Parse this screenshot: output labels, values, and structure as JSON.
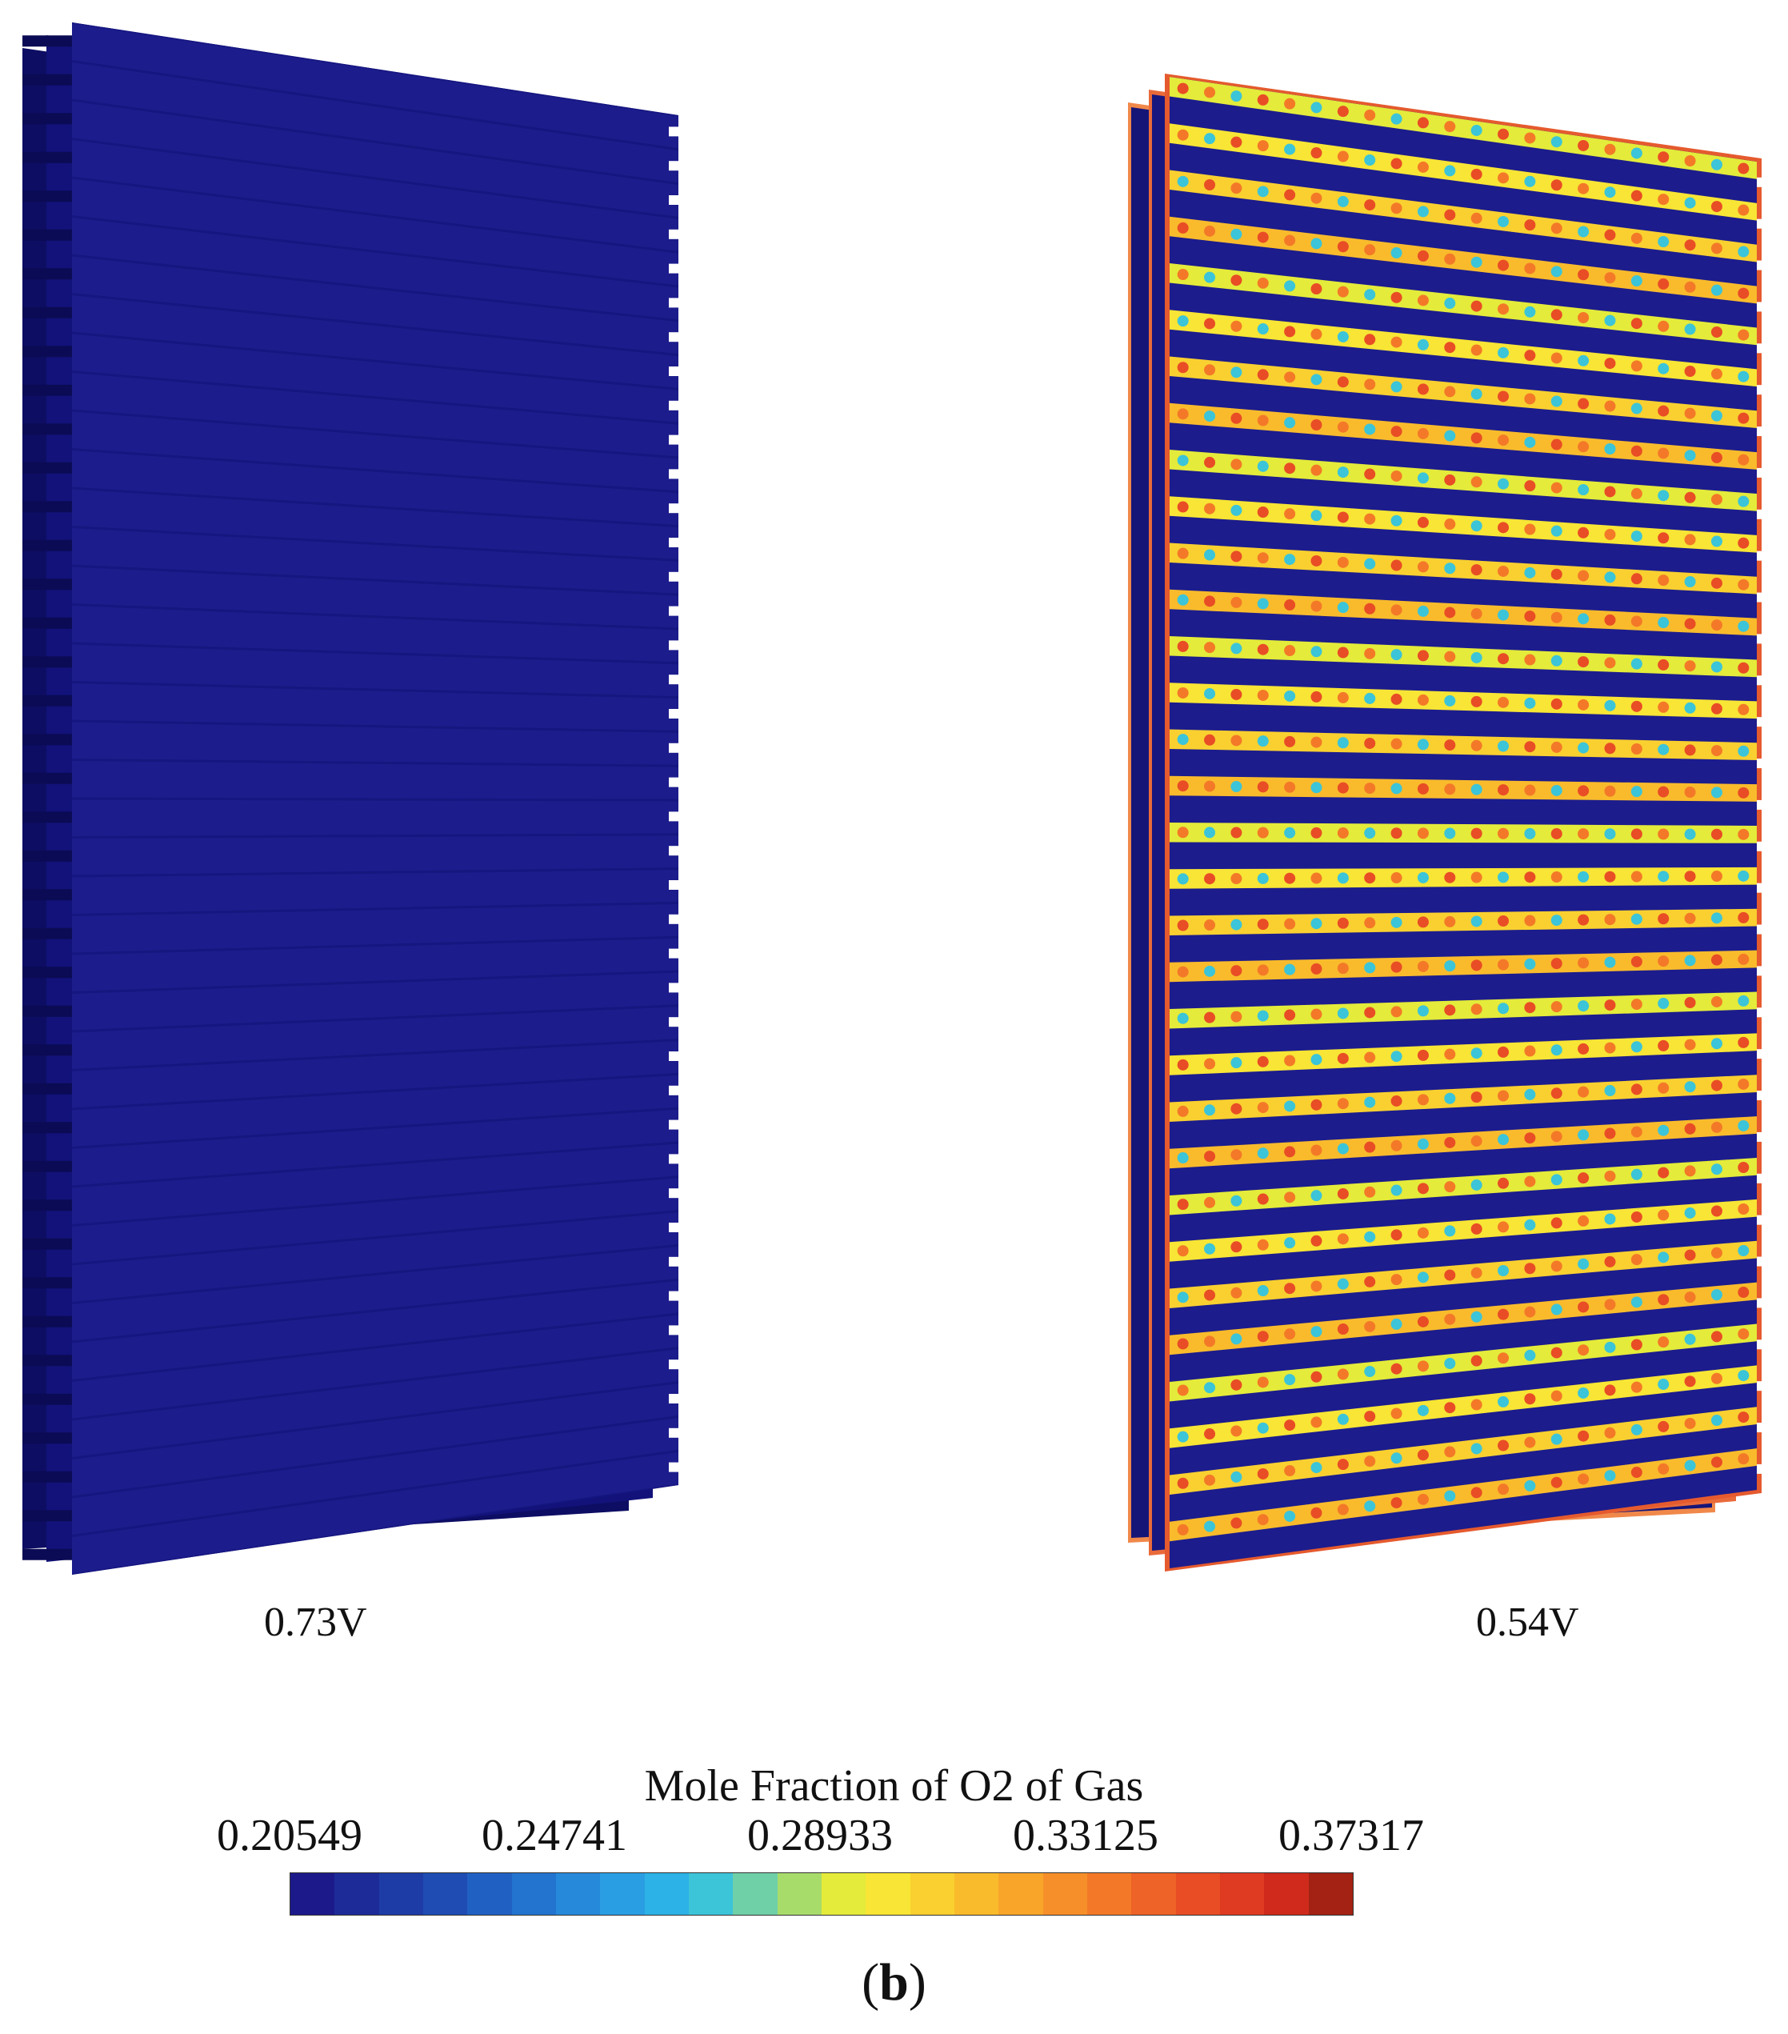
{
  "panels": [
    {
      "voltage_label": "0.73V",
      "state": "uniform-low"
    },
    {
      "voltage_label": "0.54V",
      "state": "channels-high"
    }
  ],
  "colorbar": {
    "title": "Mole Fraction of O2 of Gas",
    "ticks": [
      "0.20549",
      "0.24741",
      "0.28933",
      "0.33125",
      "0.37317"
    ],
    "min": 0.20549,
    "max": 0.37317,
    "colors": [
      "#1c1a8a",
      "#1d2b98",
      "#1e3ca6",
      "#1f4cb3",
      "#2060c2",
      "#2274cf",
      "#2689da",
      "#2a9ee3",
      "#2cb2e6",
      "#3cc4d8",
      "#6fd0a8",
      "#a8dc6a",
      "#e4eb3a",
      "#f8e535",
      "#f9d030",
      "#f9bb2c",
      "#f8a52a",
      "#f68f29",
      "#f37928",
      "#ee6327",
      "#e84d25",
      "#df3a22",
      "#cf2a1c",
      "#a32214"
    ]
  },
  "panel_letter": "b",
  "palette": {
    "background_channel": "#1c1c8c",
    "rib_dark": "#0b0b55",
    "rib_top": "#22229a"
  }
}
